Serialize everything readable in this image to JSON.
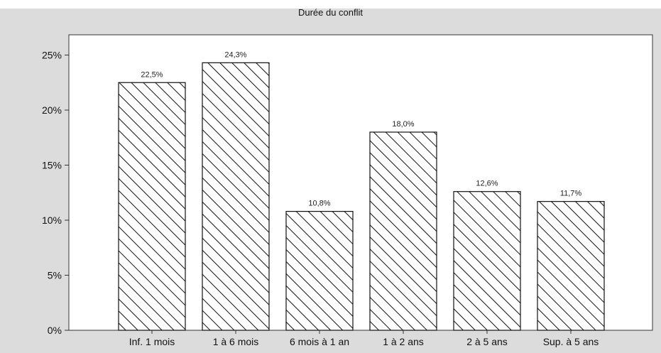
{
  "chart_data": {
    "type": "bar",
    "title": "Durée du conflit",
    "categories": [
      "Inf. 1 mois",
      "1 à 6 mois",
      "6 mois à 1 an",
      "1 à 2 ans",
      "2 à 5 ans",
      "Sup. à 5 ans"
    ],
    "values": [
      22.5,
      24.3,
      10.8,
      18.0,
      12.6,
      11.7
    ],
    "value_labels": [
      "22,5%",
      "24,3%",
      "10,8%",
      "18,0%",
      "12,6%",
      "11,7%"
    ],
    "yticks": [
      "0%",
      "5%",
      "10%",
      "15%",
      "20%",
      "25%"
    ],
    "ylim": [
      0,
      27
    ],
    "xlabel": "",
    "ylabel": "",
    "grid": false,
    "bar_fill": "hatched",
    "colors": {
      "background": "#dcdcdc",
      "plot": "#ffffff",
      "bar_stroke": "#111111"
    }
  }
}
